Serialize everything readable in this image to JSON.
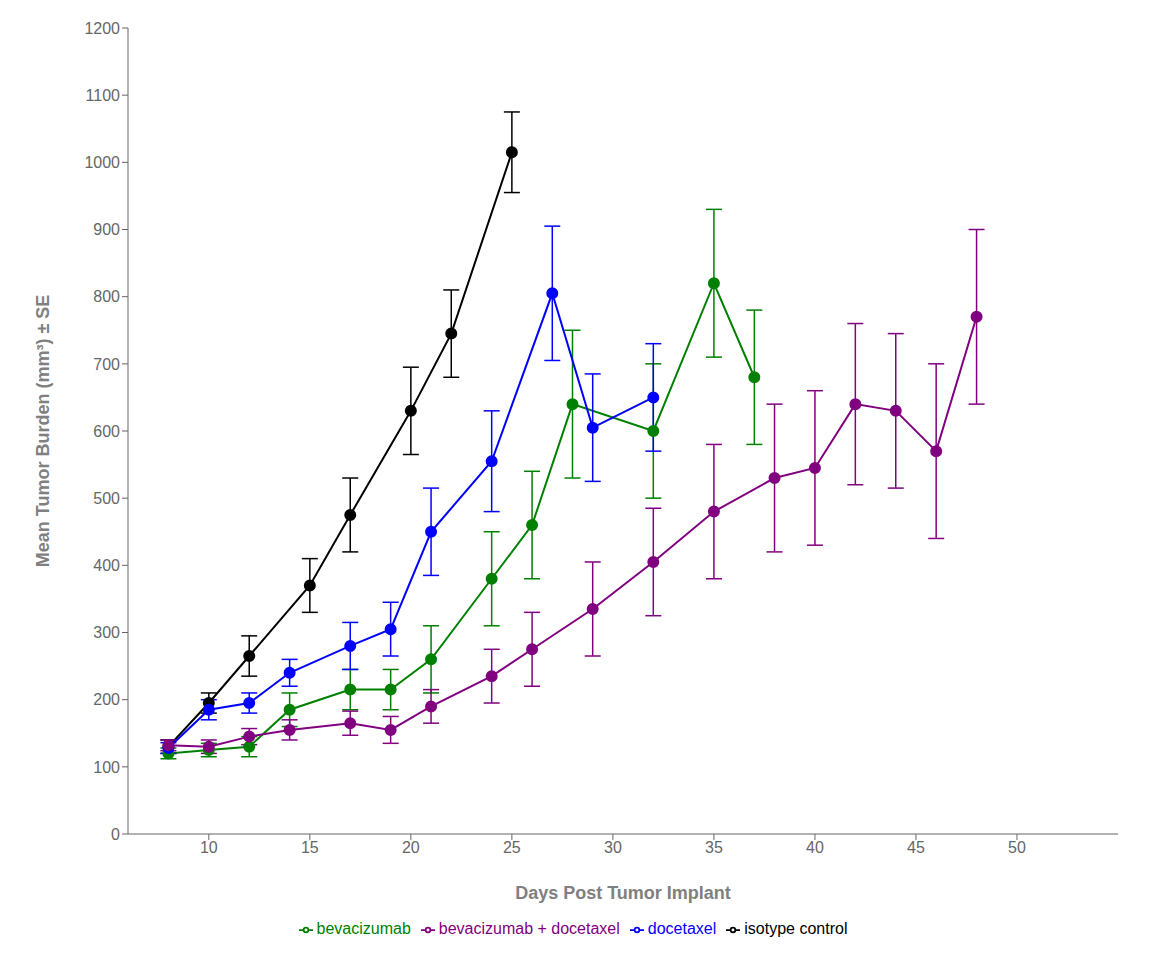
{
  "chart_data": {
    "type": "line",
    "xlabel": "Days Post Tumor Implant",
    "ylabel": "Mean Tumor Burden (mm³) ± SE",
    "xlim": [
      6,
      55
    ],
    "ylim": [
      0,
      1200
    ],
    "xticks": [
      10,
      15,
      20,
      25,
      30,
      35,
      40,
      45,
      50
    ],
    "yticks": [
      0,
      100,
      200,
      300,
      400,
      500,
      600,
      700,
      800,
      900,
      1000,
      1100,
      1200
    ],
    "grid": false,
    "legend": "bottom",
    "series": [
      {
        "name": "isotype control",
        "color": "#000000",
        "marker": "circle",
        "x": [
          8,
          10,
          12,
          15,
          17,
          20,
          22,
          25
        ],
        "values": [
          130,
          195,
          265,
          370,
          475,
          630,
          745,
          1015
        ],
        "errors": [
          10,
          15,
          30,
          40,
          55,
          65,
          65,
          60
        ]
      },
      {
        "name": "bevacizumab",
        "color": "#008000",
        "marker": "circle",
        "x": [
          8,
          10,
          12,
          14,
          17,
          19,
          21,
          24,
          26,
          28,
          32,
          35,
          37
        ],
        "values": [
          120,
          125,
          130,
          185,
          215,
          215,
          260,
          380,
          460,
          640,
          600,
          820,
          680
        ],
        "errors": [
          8,
          10,
          15,
          25,
          30,
          30,
          50,
          70,
          80,
          110,
          100,
          110,
          100
        ]
      },
      {
        "name": "docetaxel",
        "color": "#0000FF",
        "marker": "circle",
        "x": [
          8,
          10,
          12,
          14,
          17,
          19,
          21,
          24,
          27,
          29,
          32
        ],
        "values": [
          128,
          185,
          195,
          240,
          280,
          305,
          450,
          555,
          805,
          605,
          650
        ],
        "errors": [
          8,
          15,
          15,
          20,
          35,
          40,
          65,
          75,
          100,
          80,
          80
        ]
      },
      {
        "name": "bevacizumab + docetaxel",
        "color": "#800080",
        "marker": "circle",
        "x": [
          8,
          10,
          12,
          14,
          17,
          19,
          21,
          24,
          26,
          29,
          32,
          35,
          38,
          40,
          42,
          44,
          46,
          48
        ],
        "values": [
          132,
          130,
          145,
          155,
          165,
          155,
          190,
          235,
          275,
          335,
          405,
          480,
          530,
          545,
          640,
          630,
          570,
          770
        ],
        "errors": [
          8,
          10,
          12,
          15,
          18,
          20,
          25,
          40,
          55,
          70,
          80,
          100,
          110,
          115,
          120,
          115,
          130,
          130
        ]
      }
    ]
  }
}
